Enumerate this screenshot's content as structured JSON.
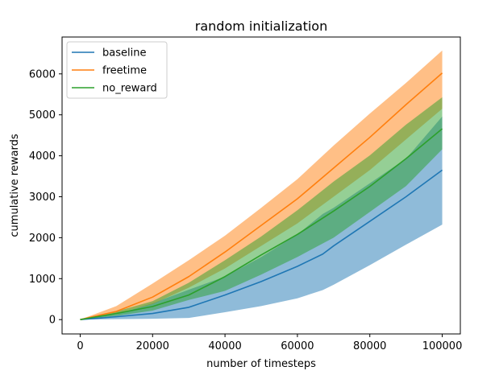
{
  "chart_data": {
    "type": "line",
    "title": "random initialization",
    "xlabel": "number of timesteps",
    "ylabel": "cumulative rewards",
    "xlim": [
      -5000,
      105000
    ],
    "ylim": [
      -350,
      6900
    ],
    "xticks": [
      0,
      20000,
      40000,
      60000,
      80000,
      100000
    ],
    "yticks": [
      0,
      1000,
      2000,
      3000,
      4000,
      5000,
      6000
    ],
    "xtick_labels": [
      "0",
      "20000",
      "40000",
      "60000",
      "80000",
      "100000"
    ],
    "ytick_labels": [
      "0",
      "1000",
      "2000",
      "3000",
      "4000",
      "5000",
      "6000"
    ],
    "grid": false,
    "legend_position": "top-left",
    "series": [
      {
        "name": "baseline",
        "color": "#1f77b4",
        "x": [
          0,
          10000,
          20000,
          30000,
          40000,
          50000,
          60000,
          67000,
          70000,
          80000,
          90000,
          100000
        ],
        "y": [
          0,
          70,
          150,
          300,
          600,
          930,
          1300,
          1600,
          1800,
          2400,
          3000,
          3650
        ],
        "lower": [
          0,
          10,
          20,
          40,
          180,
          330,
          520,
          720,
          850,
          1330,
          1830,
          2320
        ],
        "upper": [
          0,
          130,
          400,
          730,
          1050,
          1530,
          2080,
          2580,
          2730,
          3330,
          3930,
          4960
        ]
      },
      {
        "name": "freetime",
        "color": "#ff7f0e",
        "x": [
          0,
          10000,
          20000,
          30000,
          40000,
          50000,
          60000,
          70000,
          80000,
          90000,
          100000
        ],
        "y": [
          0,
          200,
          550,
          1050,
          1650,
          2300,
          2950,
          3700,
          4450,
          5250,
          6020
        ],
        "lower": [
          0,
          150,
          380,
          780,
          1250,
          1800,
          2350,
          3000,
          3650,
          4400,
          5150
        ],
        "upper": [
          0,
          330,
          880,
          1450,
          2050,
          2730,
          3430,
          4250,
          5030,
          5780,
          6570
        ]
      },
      {
        "name": "no_reward",
        "color": "#2ca02c",
        "x": [
          0,
          10000,
          20000,
          30000,
          40000,
          50000,
          60000,
          70000,
          80000,
          90000,
          100000
        ],
        "y": [
          0,
          150,
          320,
          600,
          1050,
          1580,
          2080,
          2650,
          3250,
          3930,
          4660
        ],
        "lower": [
          0,
          90,
          220,
          480,
          700,
          1100,
          1530,
          2000,
          2630,
          3260,
          4160
        ],
        "upper": [
          0,
          200,
          450,
          900,
          1450,
          2030,
          2670,
          3370,
          4010,
          4760,
          5430
        ]
      }
    ]
  }
}
